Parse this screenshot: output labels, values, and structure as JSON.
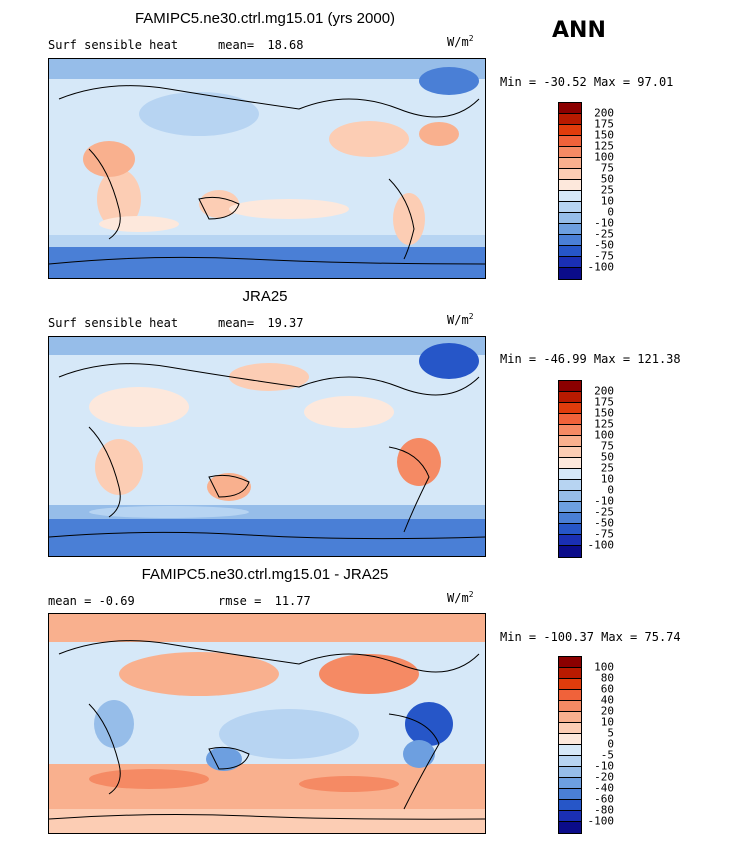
{
  "season": "ANN",
  "panels": [
    {
      "title": "FAMIPC5.ne30.ctrl.mg15.01 (yrs 2000)",
      "left_label": "Surf sensible heat",
      "mean_label": "mean=",
      "mean_value": "18.68",
      "units": "W/m",
      "units_exp": "2",
      "minmax": "Min = -30.52  Max =  97.01",
      "levels": [
        "200",
        "175",
        "150",
        "125",
        "100",
        "75",
        "50",
        "25",
        "10",
        "0",
        "-10",
        "-25",
        "-50",
        "-75",
        "-100"
      ],
      "colors": [
        "#8b0000",
        "#b81a00",
        "#e03c0c",
        "#f0623a",
        "#f58a64",
        "#f9b08e",
        "#fccdb4",
        "#fde8dc",
        "#d6e8f8",
        "#b7d4f2",
        "#96bde9",
        "#6d9fe0",
        "#4a7fd6",
        "#2656c8",
        "#1a2fb4",
        "#0b0c8a"
      ]
    },
    {
      "title": "JRA25",
      "left_label": "Surf sensible heat",
      "mean_label": "mean=",
      "mean_value": "19.37",
      "units": "W/m",
      "units_exp": "2",
      "minmax": "Min = -46.99  Max = 121.38",
      "levels": [
        "200",
        "175",
        "150",
        "125",
        "100",
        "75",
        "50",
        "25",
        "10",
        "0",
        "-10",
        "-25",
        "-50",
        "-75",
        "-100"
      ],
      "colors": [
        "#8b0000",
        "#b81a00",
        "#e03c0c",
        "#f0623a",
        "#f58a64",
        "#f9b08e",
        "#fccdb4",
        "#fde8dc",
        "#d6e8f8",
        "#b7d4f2",
        "#96bde9",
        "#6d9fe0",
        "#4a7fd6",
        "#2656c8",
        "#1a2fb4",
        "#0b0c8a"
      ]
    },
    {
      "title": "FAMIPC5.ne30.ctrl.mg15.01 - JRA25",
      "left_label": "mean =  -0.69",
      "mean_label": "rmse =",
      "mean_value": "11.77",
      "units": "W/m",
      "units_exp": "2",
      "minmax": "Min = -100.37  Max =  75.74",
      "levels": [
        "100",
        "80",
        "60",
        "40",
        "20",
        "10",
        "5",
        "0",
        "-5",
        "-10",
        "-20",
        "-40",
        "-60",
        "-80",
        "-100"
      ],
      "colors": [
        "#8b0000",
        "#b81a00",
        "#e03c0c",
        "#f0623a",
        "#f58a64",
        "#f9b08e",
        "#fccdb4",
        "#fde8dc",
        "#d6e8f8",
        "#b7d4f2",
        "#96bde9",
        "#6d9fe0",
        "#4a7fd6",
        "#2656c8",
        "#1a2fb4",
        "#0b0c8a"
      ]
    }
  ]
}
